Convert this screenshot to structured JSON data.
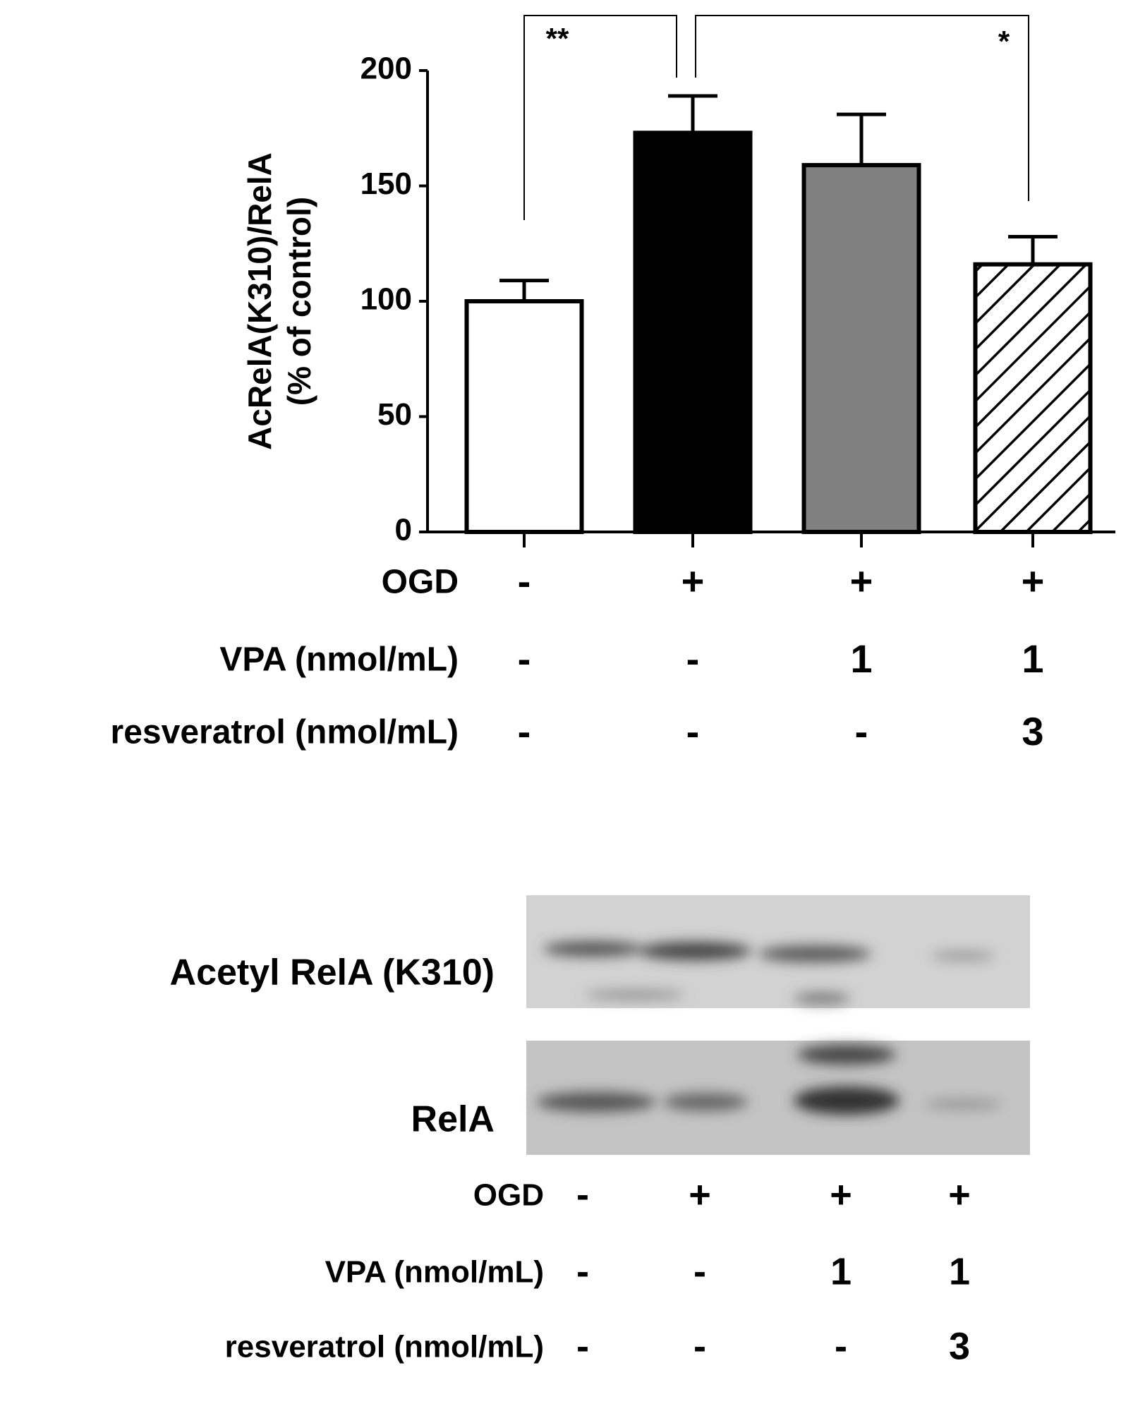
{
  "chart_data": {
    "type": "bar",
    "y_label": [
      "AcRelA(K310)/RelA",
      "(% of control)"
    ],
    "values": [
      100,
      173,
      159,
      116
    ],
    "errors": [
      9,
      16,
      22,
      12
    ],
    "colors": [
      "#ffffff",
      "#000000",
      "#808080",
      "#ffffff"
    ],
    "hatch": [
      false,
      false,
      false,
      true
    ],
    "ylim": [
      0,
      200
    ],
    "yticks": [
      0,
      50,
      100,
      150,
      200
    ],
    "significance": [
      "**",
      "*"
    ],
    "conditions": [
      {
        "label": "OGD",
        "values": [
          "-",
          "+",
          "+",
          "+"
        ]
      },
      {
        "label": "VPA (nmol/mL)",
        "values": [
          "-",
          "-",
          "1",
          "1"
        ]
      },
      {
        "label": "resveratrol (nmol/mL)",
        "values": [
          "-",
          "-",
          "-",
          "3"
        ]
      }
    ]
  },
  "blot": {
    "bands": [
      "Acetyl RelA (K310)",
      "RelA"
    ],
    "conditions": [
      {
        "label": "OGD",
        "values": [
          "-",
          "+",
          "+",
          "+"
        ]
      },
      {
        "label": "VPA (nmol/mL)",
        "values": [
          "-",
          "-",
          "1",
          "1"
        ]
      },
      {
        "label": "resveratrol (nmol/mL)",
        "values": [
          "-",
          "-",
          "-",
          "3"
        ]
      }
    ]
  }
}
